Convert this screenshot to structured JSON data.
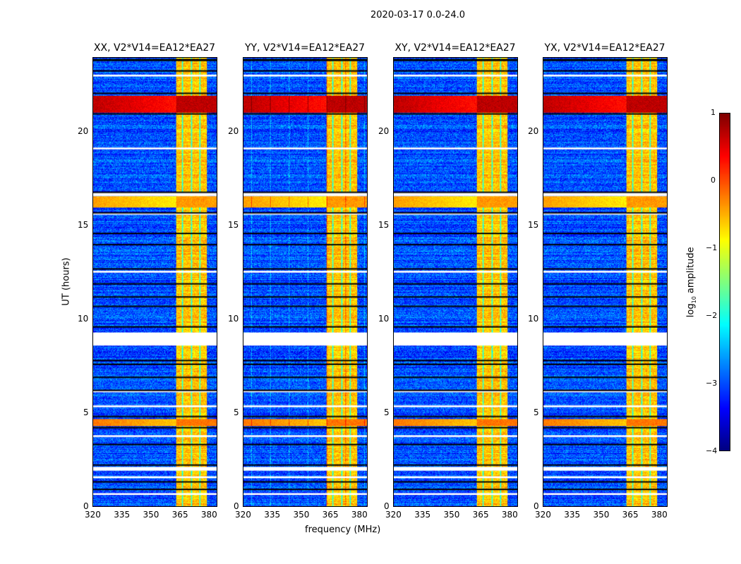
{
  "chart_data": {
    "type": "heatmap",
    "title": "2020-03-17 0.0-24.0",
    "xlabel": "frequency (MHz)",
    "ylabel": "UT (hours)",
    "xlim": [
      320,
      384.4
    ],
    "ylim": [
      0,
      24
    ],
    "xticks": [
      "320",
      "335",
      "350",
      "365",
      "380"
    ],
    "xtick_values": [
      320,
      335,
      350,
      365,
      380
    ],
    "yticks": [
      "0",
      "5",
      "10",
      "15",
      "20"
    ],
    "ytick_values": [
      0,
      5,
      10,
      15,
      20
    ],
    "panels": [
      {
        "title": "XX, V2*V14=EA12*EA27"
      },
      {
        "title": "YY, V2*V14=EA12*EA27"
      },
      {
        "title": "XY, V2*V14=EA12*EA27"
      },
      {
        "title": "YX, V2*V14=EA12*EA27"
      }
    ],
    "bright_band_mhz": [
      363,
      379
    ],
    "band_level": -0.6,
    "background_level": -3.0,
    "rfi_rows_hours": [
      [
        21.1,
        22.0,
        0.7
      ],
      [
        16.0,
        16.6,
        -0.4
      ],
      [
        4.3,
        4.7,
        -0.2
      ]
    ],
    "flagged_white_hours": [
      [
        8.6,
        9.3
      ],
      [
        1.9,
        2.1
      ],
      [
        1.5,
        1.6
      ],
      [
        16.6,
        16.8
      ],
      [
        23.0,
        23.1
      ],
      [
        19.1,
        19.2
      ],
      [
        15.6,
        15.7
      ],
      [
        12.5,
        12.6
      ],
      [
        6.1,
        6.2
      ],
      [
        5.3,
        5.4
      ],
      [
        3.7,
        3.8
      ],
      [
        0.6,
        0.7
      ]
    ],
    "black_lines_hours": [
      23.3,
      23.9,
      22.1,
      21.0,
      16.8,
      15.7,
      14.6,
      14.0,
      12.7,
      11.9,
      11.2,
      10.7,
      9.6,
      7.8,
      7.6,
      6.9,
      6.2,
      4.8,
      4.2,
      3.3,
      2.2,
      1.3,
      0.9
    ],
    "colorbar": {
      "label": "log10 amplitude",
      "label_main": "log",
      "label_sub": "10",
      "label_rest": " amplitude",
      "range": [
        -4,
        1
      ],
      "ticks": [
        "1",
        "0",
        "−1",
        "−2",
        "−3",
        "−4"
      ],
      "tick_values": [
        1,
        0,
        -1,
        -2,
        -3,
        -4
      ],
      "colormap": "jet"
    }
  }
}
